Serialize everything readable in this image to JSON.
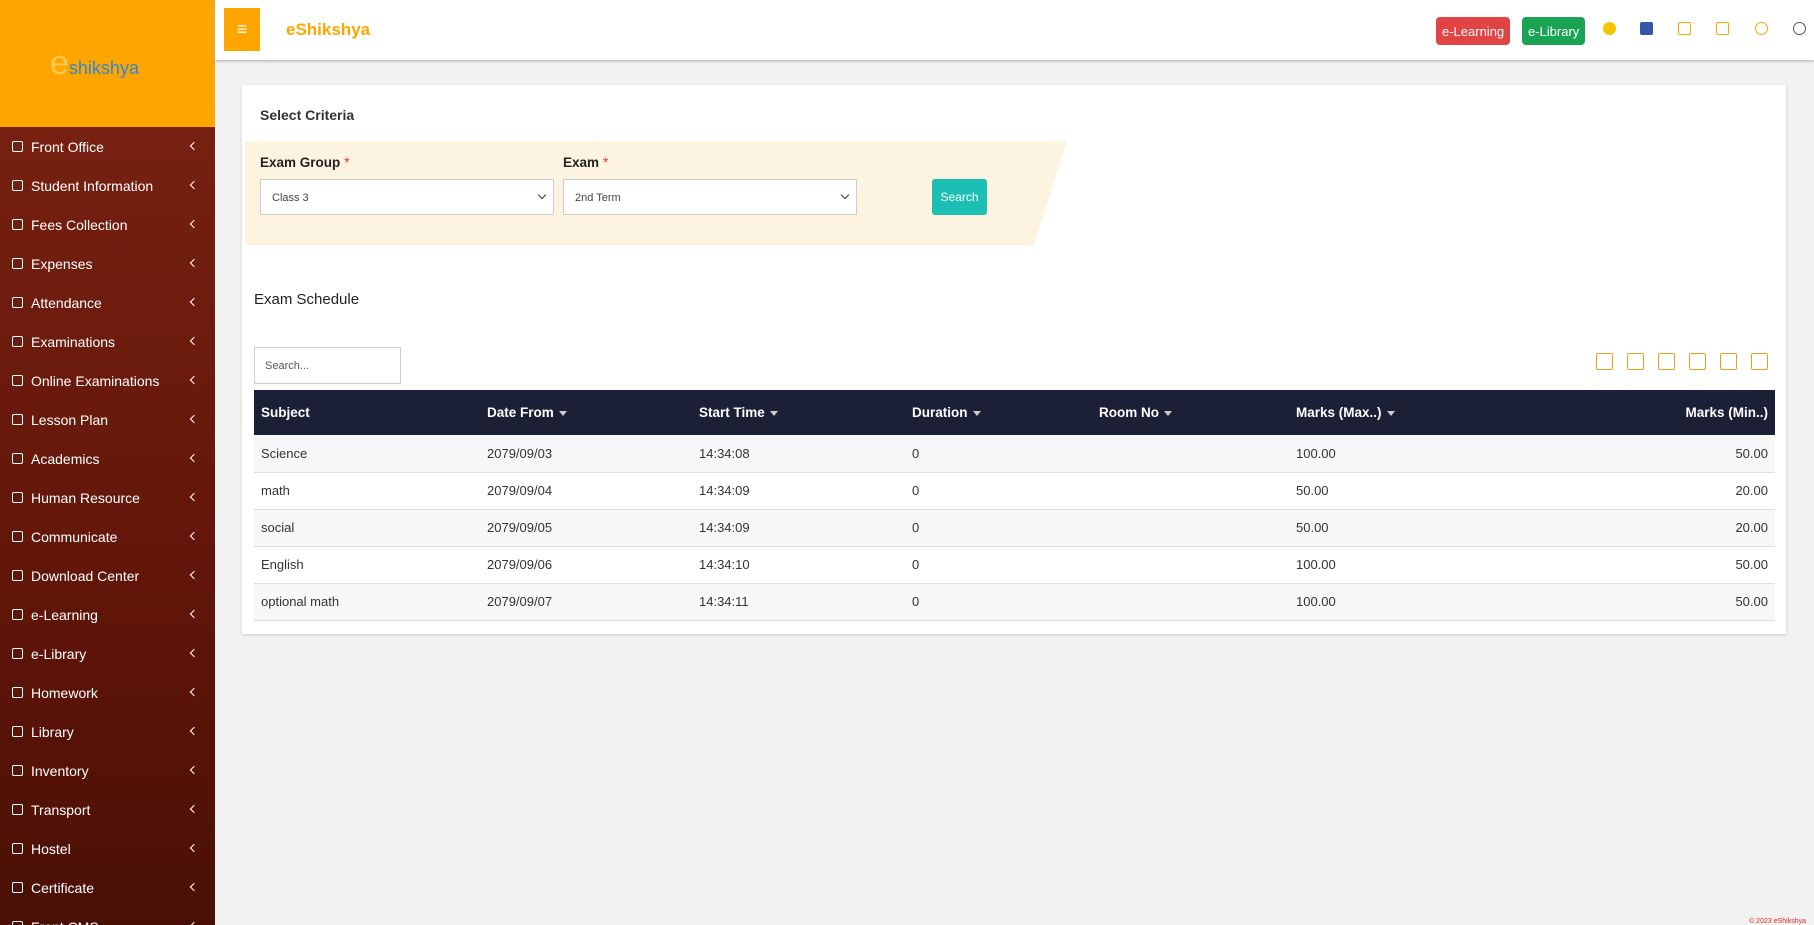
{
  "header": {
    "logo": {
      "mark": "e",
      "text": "shikshya"
    },
    "brand": "eShikshya",
    "buttons": [
      "e-Learning",
      "e-Library"
    ]
  },
  "sidebar": {
    "items": [
      "Front Office",
      "Student Information",
      "Fees Collection",
      "Expenses",
      "Attendance",
      "Examinations",
      "Online Examinations",
      "Lesson Plan",
      "Academics",
      "Human Resource",
      "Communicate",
      "Download Center",
      "e-Learning",
      "e-Library",
      "Homework",
      "Library",
      "Inventory",
      "Transport",
      "Hostel",
      "Certificate",
      "Front CMS"
    ]
  },
  "criteria": {
    "title": "Select Criteria",
    "required": "*",
    "fields": [
      {
        "label": "Exam Group",
        "value": "Class 3"
      },
      {
        "label": "Exam",
        "value": "2nd Term"
      }
    ],
    "button": "Search"
  },
  "schedule": {
    "title": "Exam Schedule",
    "search_placeholder": "Search...",
    "table": {
      "columns": [
        "Subject",
        "Date From",
        "Start Time",
        "Duration",
        "Room No",
        "Marks (Max..)",
        "Marks (Min..)"
      ],
      "rows": [
        [
          "Science",
          "2079/09/03",
          "14:34:08",
          "0",
          "",
          "100.00",
          "50.00"
        ],
        [
          "math",
          "2079/09/04",
          "14:34:09",
          "0",
          "",
          "50.00",
          "20.00"
        ],
        [
          "social",
          "2079/09/05",
          "14:34:09",
          "0",
          "",
          "50.00",
          "20.00"
        ],
        [
          "English",
          "2079/09/06",
          "14:34:10",
          "0",
          "",
          "100.00",
          "50.00"
        ],
        [
          "optional math",
          "2079/09/07",
          "14:34:11",
          "0",
          "",
          "100.00",
          "50.00"
        ]
      ]
    }
  },
  "footer": "© 2023 eShikshya"
}
